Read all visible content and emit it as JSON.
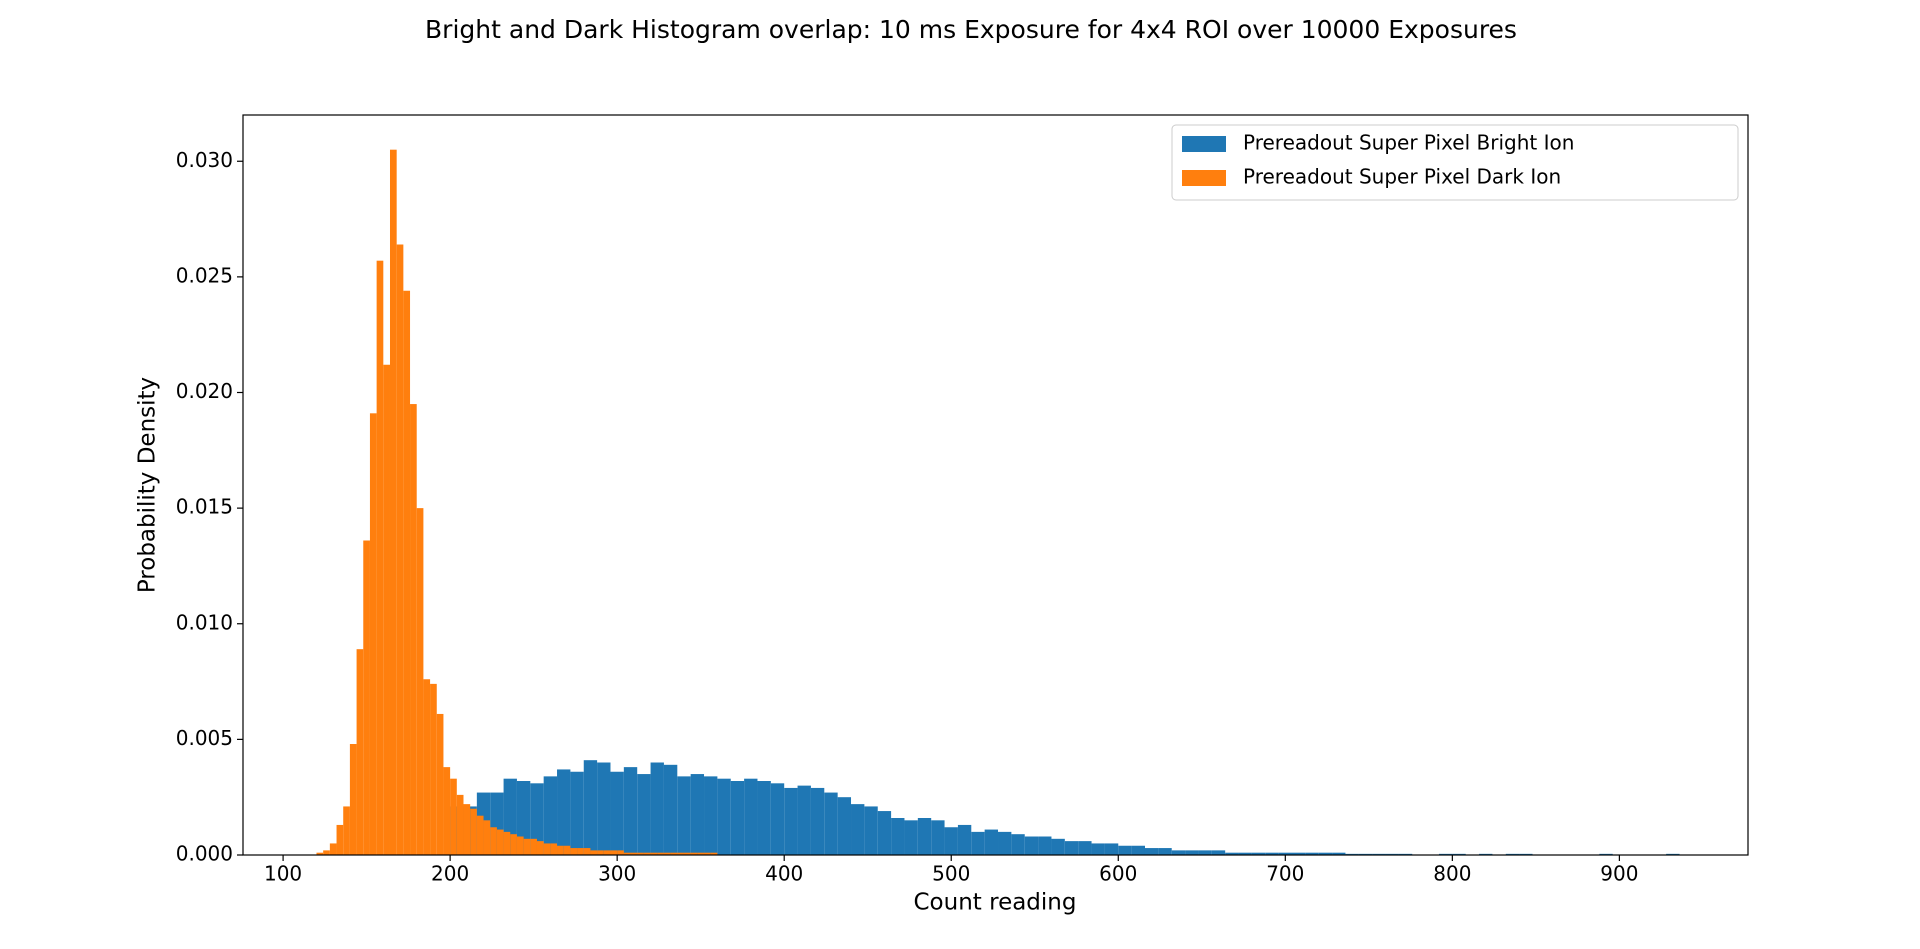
{
  "chart_data": {
    "type": "histogram",
    "title": "Bright and Dark Histogram overlap: 10 ms Exposure for 4x4 ROI over 10000 Exposures",
    "xlabel": "Count reading",
    "ylabel": "Probability Density",
    "xlim": [
      76,
      977
    ],
    "ylim": [
      0,
      0.032
    ],
    "xticks": [
      100,
      200,
      300,
      400,
      500,
      600,
      700,
      800,
      900
    ],
    "yticks": [
      {
        "value": 0,
        "label": "0.000"
      },
      {
        "value": 0.005,
        "label": "0.005"
      },
      {
        "value": 0.01,
        "label": "0.010"
      },
      {
        "value": 0.015,
        "label": "0.015"
      },
      {
        "value": 0.02,
        "label": "0.020"
      },
      {
        "value": 0.025,
        "label": "0.025"
      },
      {
        "value": 0.03,
        "label": "0.030"
      }
    ],
    "legend": "upper right",
    "series": [
      {
        "name": "Prereadout Super Pixel Bright Ion",
        "color": "#1f77b4",
        "bins": [
          200,
          208,
          216,
          224,
          232,
          240,
          248,
          256,
          264,
          272,
          280,
          288,
          296,
          304,
          312,
          320,
          328,
          336,
          344,
          352,
          360,
          368,
          376,
          384,
          392,
          400,
          408,
          416,
          424,
          432,
          440,
          448,
          456,
          464,
          472,
          480,
          488,
          496,
          504,
          512,
          520,
          528,
          536,
          544,
          552,
          560,
          568,
          576,
          584,
          592,
          600,
          608,
          616,
          624,
          632,
          640,
          648,
          656,
          664,
          672,
          680,
          688,
          696,
          704,
          712,
          720,
          728,
          736,
          744,
          752,
          760,
          768,
          776,
          784,
          792,
          800,
          808,
          816,
          824,
          832,
          840,
          848,
          856,
          864,
          872,
          880,
          888,
          896,
          904,
          912,
          920,
          928,
          936
        ],
        "values": [
          0.0021,
          0.0021,
          0.0027,
          0.0027,
          0.0033,
          0.0032,
          0.0031,
          0.0034,
          0.0037,
          0.0036,
          0.0041,
          0.004,
          0.0036,
          0.0038,
          0.0035,
          0.004,
          0.0039,
          0.0034,
          0.0035,
          0.0034,
          0.0033,
          0.0032,
          0.0033,
          0.0032,
          0.0031,
          0.0029,
          0.003,
          0.0029,
          0.0027,
          0.0025,
          0.0022,
          0.0021,
          0.0019,
          0.0016,
          0.0015,
          0.0016,
          0.0015,
          0.0012,
          0.0013,
          0.001,
          0.0011,
          0.001,
          0.0009,
          0.0008,
          0.0008,
          0.0007,
          0.0006,
          0.0006,
          0.0005,
          0.0005,
          0.0004,
          0.0004,
          0.0003,
          0.0003,
          0.0002,
          0.0002,
          0.0002,
          0.0002,
          0.0001,
          0.0001,
          0.0001,
          0.0001,
          0.0001,
          0.0001,
          0.0001,
          0.0001,
          0.0001,
          5e-05,
          5e-05,
          5e-05,
          5e-05,
          5e-05,
          0,
          0,
          5e-05,
          5e-05,
          0,
          5e-05,
          0,
          5e-05,
          5e-05,
          0,
          0,
          0,
          0,
          0,
          5e-05,
          0,
          0,
          0,
          0,
          5e-05
        ]
      },
      {
        "name": "Prereadout Super Pixel Dark Ion",
        "color": "#ff7f0e",
        "bins": [
          120,
          124,
          128,
          132,
          136,
          140,
          144,
          148,
          152,
          156,
          160,
          164,
          168,
          172,
          176,
          180,
          184,
          188,
          192,
          196,
          200,
          204,
          208,
          212,
          216,
          220,
          224,
          228,
          232,
          236,
          240,
          244,
          248,
          252,
          256,
          260,
          264,
          268,
          272,
          276,
          280,
          284,
          288,
          292,
          296,
          300,
          304,
          308,
          312,
          316,
          320,
          324,
          328,
          332,
          336,
          340,
          344,
          348,
          352,
          356,
          360
        ],
        "values": [
          0.0001,
          0.0002,
          0.0005,
          0.0013,
          0.0021,
          0.0048,
          0.0089,
          0.0136,
          0.0191,
          0.0257,
          0.0212,
          0.0305,
          0.0264,
          0.0244,
          0.0195,
          0.015,
          0.0076,
          0.0074,
          0.0061,
          0.0038,
          0.0033,
          0.0026,
          0.0022,
          0.002,
          0.0017,
          0.0015,
          0.0012,
          0.0011,
          0.001,
          0.0009,
          0.0008,
          0.0007,
          0.0007,
          0.0006,
          0.0005,
          0.0005,
          0.0004,
          0.0004,
          0.0003,
          0.0003,
          0.0003,
          0.0002,
          0.0002,
          0.0002,
          0.0002,
          0.0002,
          0.0001,
          0.0001,
          0.0001,
          0.0001,
          0.0001,
          0.0001,
          0.0001,
          0.0001,
          0.0001,
          0.0001,
          0.0001,
          0.0001,
          0.0001,
          0.0001
        ]
      }
    ]
  }
}
